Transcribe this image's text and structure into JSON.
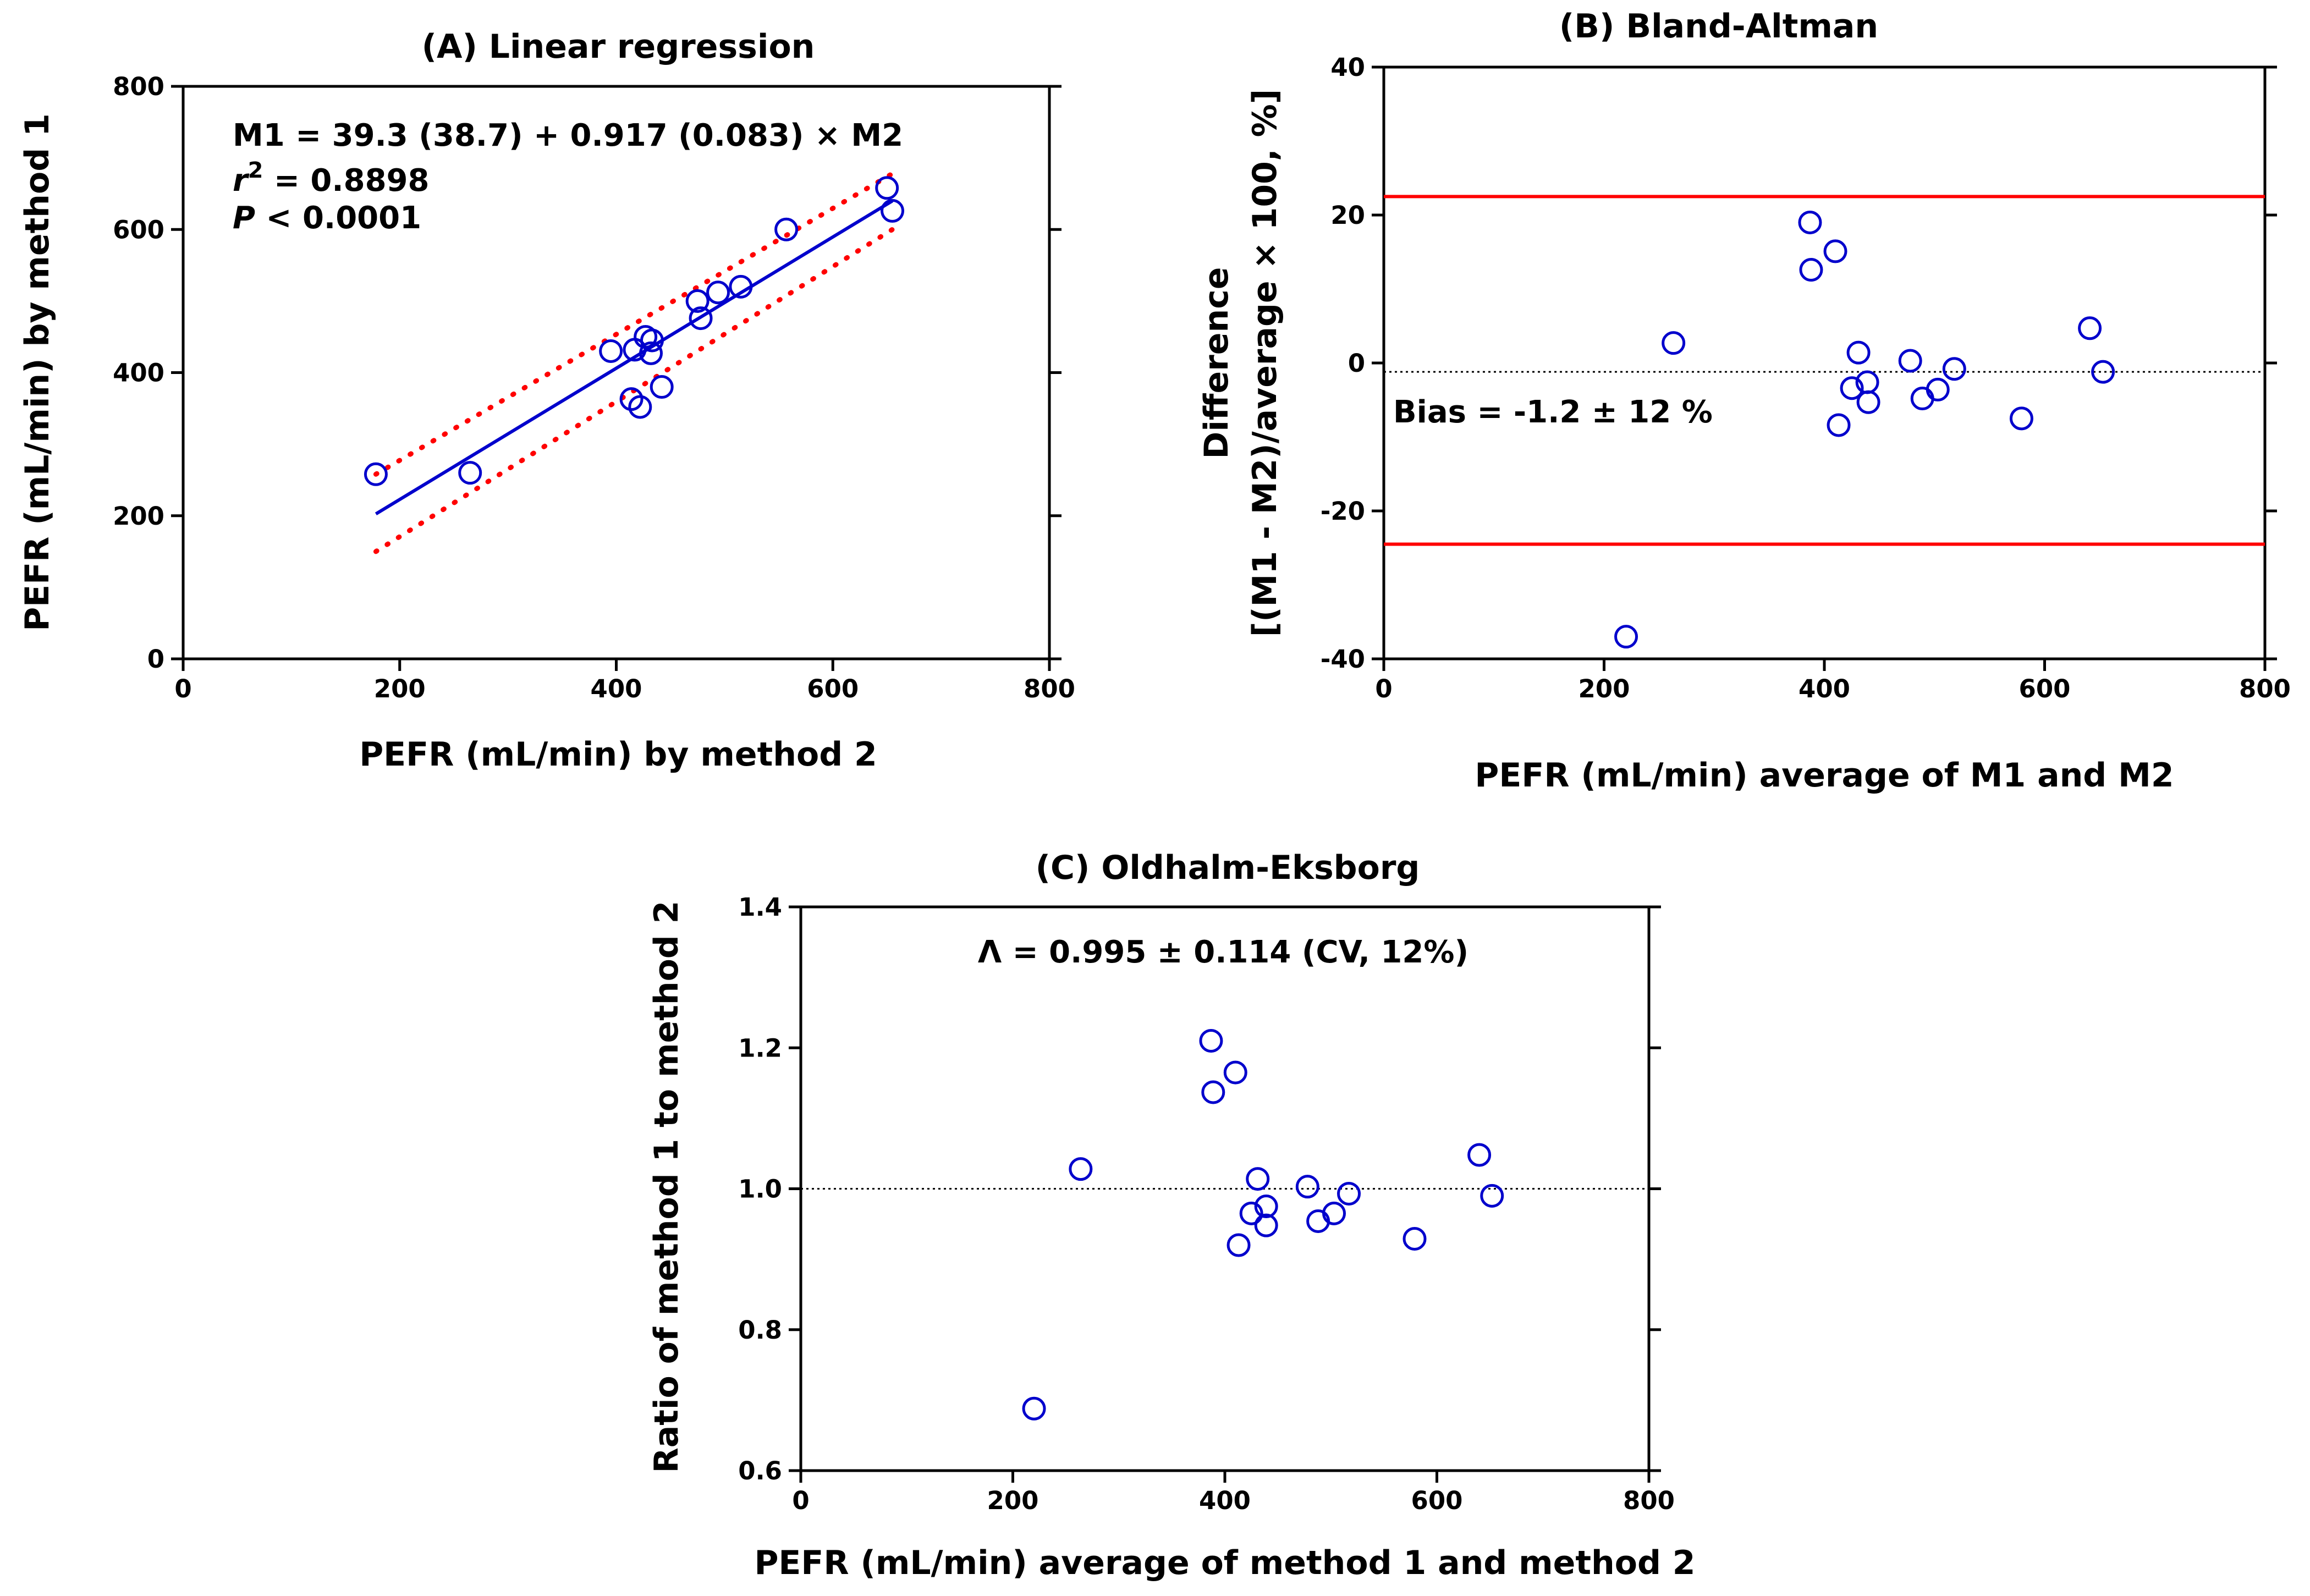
{
  "chart_data": [
    {
      "type": "scatter",
      "title": "(A) Linear regression",
      "xlabel": "PEFR (mL/min) by method 2",
      "ylabel": "PEFR (mL/min) by method 1",
      "xlim": [
        0,
        800
      ],
      "ylim": [
        0,
        800
      ],
      "xticks": [
        0,
        200,
        400,
        600,
        800
      ],
      "yticks": [
        0,
        200,
        400,
        600,
        800
      ],
      "xtick_labels": [
        "0",
        "200",
        "400",
        "600",
        "800"
      ],
      "ytick_labels": [
        "0",
        "200",
        "400",
        "600",
        "800"
      ],
      "annotations": [
        "M1 =  39.3 (38.7) + 0.917 (0.083) × M2",
        "r² = 0.8898",
        "P < 0.0001"
      ],
      "points": [
        [
          178,
          258
        ],
        [
          265,
          260
        ],
        [
          395,
          430
        ],
        [
          417,
          432
        ],
        [
          414,
          363
        ],
        [
          422,
          352
        ],
        [
          427,
          450
        ],
        [
          433,
          445
        ],
        [
          432,
          427
        ],
        [
          442,
          380
        ],
        [
          475,
          500
        ],
        [
          478,
          476
        ],
        [
          494,
          512
        ],
        [
          515,
          520
        ],
        [
          557,
          600
        ],
        [
          650,
          658
        ],
        [
          655,
          626
        ]
      ],
      "regression_line": {
        "intercept": 39.3,
        "slope": 0.917,
        "x_range": [
          178,
          655
        ]
      },
      "confidence_band": {
        "lower": [
          [
            178,
            150
          ],
          [
            655,
            600
          ]
        ],
        "upper": [
          [
            178,
            258
          ],
          [
            655,
            678
          ]
        ]
      },
      "colors": {
        "points": "#0000cc",
        "line": "#0000cc",
        "band": "#ff0000"
      },
      "grid": false
    },
    {
      "type": "scatter",
      "title": "(B) Bland-Altman",
      "xlabel": "PEFR (mL/min) average of M1 and M2",
      "ylabel_lines": [
        "Difference",
        "[(M1 - M2)/average × 100, %]"
      ],
      "xlim": [
        0,
        800
      ],
      "ylim": [
        -40,
        40
      ],
      "xticks": [
        0,
        200,
        400,
        600,
        800
      ],
      "yticks": [
        -40,
        -20,
        0,
        20,
        40
      ],
      "xtick_labels": [
        "0",
        "200",
        "400",
        "600",
        "800"
      ],
      "ytick_labels": [
        "-40",
        "-20",
        "0",
        "20",
        "40"
      ],
      "annotations": [
        "Bias = -1.2 ± 12 %"
      ],
      "points": [
        [
          220,
          -37
        ],
        [
          263,
          2.7
        ],
        [
          387,
          19
        ],
        [
          388,
          12.6
        ],
        [
          410,
          15.1
        ],
        [
          413,
          -8.4
        ],
        [
          425,
          -3.4
        ],
        [
          431,
          1.4
        ],
        [
          439,
          -2.6
        ],
        [
          440,
          -5.3
        ],
        [
          478,
          0.3
        ],
        [
          489,
          -4.8
        ],
        [
          503,
          -3.6
        ],
        [
          518,
          -0.8
        ],
        [
          579,
          -7.5
        ],
        [
          641,
          4.7
        ],
        [
          653,
          -1.2
        ]
      ],
      "bias_line": -1.2,
      "limits_of_agreement": [
        22.5,
        -24.5
      ],
      "colors": {
        "points": "#0000cc",
        "limits": "#ff0000",
        "bias": "#000000"
      },
      "grid": false
    },
    {
      "type": "scatter",
      "title": "(C) Oldhalm-Eksborg",
      "xlabel": "PEFR (mL/min) average of method 1 and method 2",
      "ylabel": "Ratio of method 1 to method 2",
      "xlim": [
        0,
        800
      ],
      "ylim": [
        0.6,
        1.4
      ],
      "xticks": [
        0,
        200,
        400,
        600,
        800
      ],
      "yticks": [
        0.6,
        0.8,
        1.0,
        1.2,
        1.4
      ],
      "xtick_labels": [
        "0",
        "200",
        "400",
        "600",
        "800"
      ],
      "ytick_labels": [
        "0.6",
        "0.8",
        "1.0",
        "1.2",
        "1.4"
      ],
      "annotations": [
        "Λ = 0.995 ± 0.114 (CV, 12%)"
      ],
      "points": [
        [
          220,
          0.688
        ],
        [
          264,
          1.028
        ],
        [
          387,
          1.21
        ],
        [
          389,
          1.137
        ],
        [
          410,
          1.165
        ],
        [
          413,
          0.92
        ],
        [
          425,
          0.965
        ],
        [
          431,
          1.014
        ],
        [
          439,
          0.975
        ],
        [
          439,
          0.948
        ],
        [
          478,
          1.003
        ],
        [
          488,
          0.954
        ],
        [
          503,
          0.965
        ],
        [
          517,
          0.993
        ],
        [
          579,
          0.929
        ],
        [
          640,
          1.048
        ],
        [
          652,
          0.99
        ]
      ],
      "reference_line": 1.0,
      "colors": {
        "points": "#0000cc",
        "reference": "#000000"
      },
      "grid": false
    }
  ]
}
